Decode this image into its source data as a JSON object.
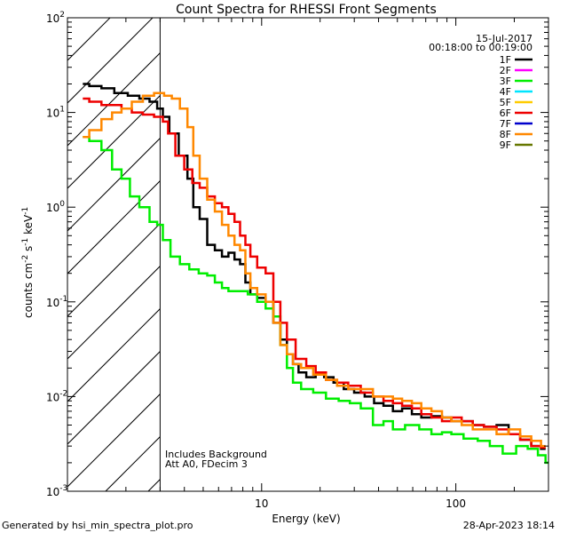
{
  "chart_data": {
    "type": "line",
    "title": "Count Spectra for RHESSI Front Segments",
    "xlabel": "Energy (keV)",
    "ylabel_main": "counts cm",
    "ylabel_exp1": "-2",
    "ylabel_mid": " s",
    "ylabel_exp2": "-1",
    "ylabel_end": " keV",
    "ylabel_exp3": "-1",
    "xscale": "log",
    "yscale": "log",
    "xlim": [
      1.0,
      300.0
    ],
    "ylim": [
      0.001,
      100.0
    ],
    "x_ticks": [
      {
        "value": 10,
        "label": "10"
      },
      {
        "value": 100,
        "label": "100"
      }
    ],
    "y_ticks": [
      {
        "value": 0.001,
        "base": "10",
        "exp": "-3"
      },
      {
        "value": 0.01,
        "base": "10",
        "exp": "-2"
      },
      {
        "value": 0.1,
        "base": "10",
        "exp": "-1"
      },
      {
        "value": 1,
        "base": "10",
        "exp": "0"
      },
      {
        "value": 10,
        "base": "10",
        "exp": "1"
      },
      {
        "value": 100,
        "base": "10",
        "exp": "2"
      }
    ],
    "date": "15-Jul-2017",
    "time_range": "00:18:00 to 00:19:00",
    "hatched_region_kev": [
      1.0,
      3.0
    ],
    "annotations": [
      "Includes Background",
      "Att A0, FDecim 3"
    ],
    "legend": [
      {
        "name": "1F",
        "color": "#000000"
      },
      {
        "name": "2F",
        "color": "#ff00ff"
      },
      {
        "name": "3F",
        "color": "#00ee00"
      },
      {
        "name": "4F",
        "color": "#00e5ff"
      },
      {
        "name": "5F",
        "color": "#ffcc00"
      },
      {
        "name": "6F",
        "color": "#ee0000"
      },
      {
        "name": "7F",
        "color": "#0000cc"
      },
      {
        "name": "8F",
        "color": "#ff8800"
      },
      {
        "name": "9F",
        "color": "#667700"
      }
    ],
    "series": [
      {
        "name": "1F",
        "color": "#000000",
        "points": [
          [
            1.2,
            20
          ],
          [
            1.4,
            19
          ],
          [
            1.6,
            18
          ],
          [
            1.9,
            16
          ],
          [
            2.2,
            15
          ],
          [
            2.5,
            14
          ],
          [
            2.8,
            13
          ],
          [
            3.0,
            11
          ],
          [
            3.2,
            9
          ],
          [
            3.5,
            6
          ],
          [
            4.0,
            3.5
          ],
          [
            4.3,
            2.0
          ],
          [
            4.6,
            1.0
          ],
          [
            5.0,
            0.75
          ],
          [
            5.5,
            0.4
          ],
          [
            6.0,
            0.35
          ],
          [
            6.5,
            0.3
          ],
          [
            7.0,
            0.33
          ],
          [
            7.5,
            0.28
          ],
          [
            8.0,
            0.25
          ],
          [
            8.5,
            0.16
          ],
          [
            9.0,
            0.12
          ],
          [
            10.0,
            0.11
          ],
          [
            11.0,
            0.1
          ],
          [
            12.0,
            0.06
          ],
          [
            13.0,
            0.04
          ],
          [
            14.0,
            0.028
          ],
          [
            15.0,
            0.022
          ],
          [
            16.0,
            0.018
          ],
          [
            18.0,
            0.016
          ],
          [
            20.0,
            0.017
          ],
          [
            22.0,
            0.016
          ],
          [
            25.0,
            0.014
          ],
          [
            28.0,
            0.012
          ],
          [
            32.0,
            0.011
          ],
          [
            36.0,
            0.01
          ],
          [
            40.0,
            0.0085
          ],
          [
            45.0,
            0.008
          ],
          [
            50.0,
            0.007
          ],
          [
            56.0,
            0.0075
          ],
          [
            63.0,
            0.0065
          ],
          [
            70.0,
            0.006
          ],
          [
            80.0,
            0.0062
          ],
          [
            90.0,
            0.006
          ],
          [
            100.0,
            0.0055
          ],
          [
            115.0,
            0.0055
          ],
          [
            130.0,
            0.005
          ],
          [
            150.0,
            0.0048
          ],
          [
            175.0,
            0.005
          ],
          [
            200.0,
            0.004
          ],
          [
            230.0,
            0.0035
          ],
          [
            260.0,
            0.003
          ],
          [
            290.0,
            0.0028
          ]
        ]
      },
      {
        "name": "3F",
        "color": "#00ee00",
        "points": [
          [
            1.2,
            5.5
          ],
          [
            1.4,
            5.0
          ],
          [
            1.6,
            4.0
          ],
          [
            1.8,
            2.5
          ],
          [
            2.0,
            2.0
          ],
          [
            2.2,
            1.3
          ],
          [
            2.5,
            1.0
          ],
          [
            2.8,
            0.7
          ],
          [
            3.0,
            0.65
          ],
          [
            3.2,
            0.45
          ],
          [
            3.6,
            0.3
          ],
          [
            4.0,
            0.25
          ],
          [
            4.5,
            0.22
          ],
          [
            5.0,
            0.2
          ],
          [
            5.5,
            0.19
          ],
          [
            6.0,
            0.16
          ],
          [
            6.5,
            0.14
          ],
          [
            7.0,
            0.13
          ],
          [
            8.0,
            0.13
          ],
          [
            9.0,
            0.12
          ],
          [
            10.0,
            0.1
          ],
          [
            11.0,
            0.085
          ],
          [
            12.0,
            0.07
          ],
          [
            13.0,
            0.035
          ],
          [
            14.0,
            0.02
          ],
          [
            15.0,
            0.014
          ],
          [
            17.0,
            0.012
          ],
          [
            20.0,
            0.011
          ],
          [
            23.0,
            0.0095
          ],
          [
            27.0,
            0.009
          ],
          [
            30.0,
            0.0085
          ],
          [
            35.0,
            0.0075
          ],
          [
            40.0,
            0.005
          ],
          [
            45.0,
            0.0055
          ],
          [
            50.0,
            0.0045
          ],
          [
            60.0,
            0.005
          ],
          [
            70.0,
            0.0045
          ],
          [
            80.0,
            0.004
          ],
          [
            90.0,
            0.0042
          ],
          [
            100.0,
            0.004
          ],
          [
            120.0,
            0.0036
          ],
          [
            140.0,
            0.0034
          ],
          [
            160.0,
            0.003
          ],
          [
            190.0,
            0.0025
          ],
          [
            220.0,
            0.003
          ],
          [
            250.0,
            0.0028
          ],
          [
            280.0,
            0.0024
          ],
          [
            300.0,
            0.002
          ]
        ]
      },
      {
        "name": "6F",
        "color": "#ee0000",
        "points": [
          [
            1.2,
            14
          ],
          [
            1.4,
            13
          ],
          [
            1.6,
            12
          ],
          [
            1.8,
            12
          ],
          [
            2.0,
            11
          ],
          [
            2.3,
            10
          ],
          [
            2.6,
            9.5
          ],
          [
            3.0,
            9
          ],
          [
            3.2,
            8
          ],
          [
            3.4,
            6
          ],
          [
            3.8,
            3.5
          ],
          [
            4.2,
            2.5
          ],
          [
            4.6,
            1.8
          ],
          [
            5.0,
            1.6
          ],
          [
            5.5,
            1.3
          ],
          [
            6.0,
            1.1
          ],
          [
            6.5,
            1.0
          ],
          [
            7.0,
            0.85
          ],
          [
            7.5,
            0.7
          ],
          [
            8.0,
            0.5
          ],
          [
            8.5,
            0.4
          ],
          [
            9.0,
            0.3
          ],
          [
            10.0,
            0.23
          ],
          [
            11.0,
            0.2
          ],
          [
            12.0,
            0.1
          ],
          [
            13.0,
            0.06
          ],
          [
            14.0,
            0.04
          ],
          [
            16.0,
            0.025
          ],
          [
            18.0,
            0.021
          ],
          [
            20.0,
            0.018
          ],
          [
            23.0,
            0.015
          ],
          [
            26.0,
            0.014
          ],
          [
            30.0,
            0.013
          ],
          [
            35.0,
            0.011
          ],
          [
            40.0,
            0.01
          ],
          [
            45.0,
            0.009
          ],
          [
            50.0,
            0.0085
          ],
          [
            56.0,
            0.008
          ],
          [
            63.0,
            0.0075
          ],
          [
            70.0,
            0.0065
          ],
          [
            80.0,
            0.006
          ],
          [
            90.0,
            0.0055
          ],
          [
            100.0,
            0.006
          ],
          [
            115.0,
            0.0055
          ],
          [
            130.0,
            0.005
          ],
          [
            150.0,
            0.0048
          ],
          [
            175.0,
            0.0045
          ],
          [
            200.0,
            0.004
          ],
          [
            230.0,
            0.0035
          ],
          [
            260.0,
            0.003
          ],
          [
            290.0,
            0.0029
          ]
        ]
      },
      {
        "name": "8F",
        "color": "#ff8800",
        "points": [
          [
            1.2,
            5.5
          ],
          [
            1.4,
            6.5
          ],
          [
            1.6,
            8.5
          ],
          [
            1.8,
            10
          ],
          [
            2.0,
            11
          ],
          [
            2.3,
            13
          ],
          [
            2.6,
            15
          ],
          [
            3.0,
            16
          ],
          [
            3.3,
            15
          ],
          [
            3.6,
            14
          ],
          [
            4.0,
            11
          ],
          [
            4.3,
            7
          ],
          [
            4.6,
            3.5
          ],
          [
            5.0,
            2.0
          ],
          [
            5.5,
            1.2
          ],
          [
            6.0,
            0.9
          ],
          [
            6.5,
            0.65
          ],
          [
            7.0,
            0.5
          ],
          [
            7.5,
            0.4
          ],
          [
            8.0,
            0.35
          ],
          [
            8.5,
            0.2
          ],
          [
            9.0,
            0.14
          ],
          [
            10.0,
            0.12
          ],
          [
            11.0,
            0.1
          ],
          [
            12.0,
            0.06
          ],
          [
            13.0,
            0.035
          ],
          [
            14.0,
            0.028
          ],
          [
            15.0,
            0.022
          ],
          [
            17.0,
            0.02
          ],
          [
            20.0,
            0.017
          ],
          [
            23.0,
            0.015
          ],
          [
            26.0,
            0.013
          ],
          [
            30.0,
            0.012
          ],
          [
            35.0,
            0.012
          ],
          [
            40.0,
            0.01
          ],
          [
            45.0,
            0.01
          ],
          [
            50.0,
            0.0095
          ],
          [
            56.0,
            0.009
          ],
          [
            63.0,
            0.0085
          ],
          [
            70.0,
            0.0075
          ],
          [
            80.0,
            0.007
          ],
          [
            90.0,
            0.006
          ],
          [
            100.0,
            0.0055
          ],
          [
            115.0,
            0.005
          ],
          [
            130.0,
            0.0045
          ],
          [
            150.0,
            0.0045
          ],
          [
            175.0,
            0.004
          ],
          [
            200.0,
            0.0045
          ],
          [
            230.0,
            0.0038
          ],
          [
            260.0,
            0.0034
          ],
          [
            290.0,
            0.003
          ]
        ]
      }
    ]
  },
  "footer": {
    "left": "Generated by hsi_min_spectra_plot.pro",
    "right": "28-Apr-2023 18:14"
  }
}
